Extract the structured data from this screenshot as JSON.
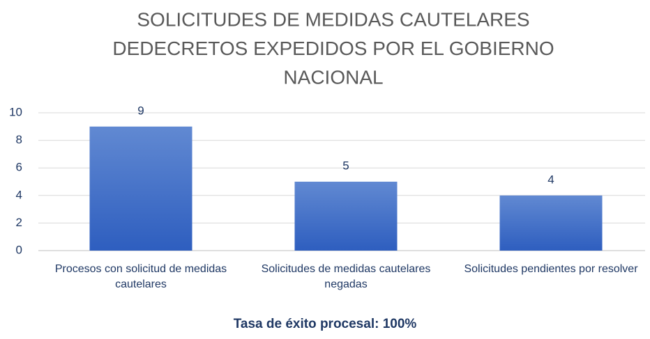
{
  "chart_data": {
    "type": "bar",
    "title": [
      "SOLICITUDES DE MEDIDAS CAUTELARES",
      "DEDECRETOS EXPEDIDOS POR EL GOBIERNO",
      "NACIONAL"
    ],
    "categories": [
      "Procesos con solicitud de medidas cautelares",
      "Solicitudes de medidas cautelares negadas",
      "Solicitudes pendientes por resolver"
    ],
    "values": [
      9,
      5,
      4
    ],
    "color": "#4472c4",
    "ylim": [
      0,
      10
    ],
    "yticks": [
      0,
      2,
      4,
      6,
      8,
      10
    ],
    "grid": true,
    "annotation": "Tasa de éxito procesal: 100%"
  }
}
